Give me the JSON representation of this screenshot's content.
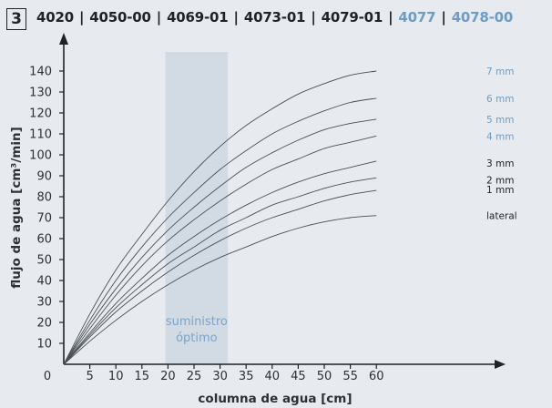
{
  "figure_number": "3",
  "title_parts": [
    {
      "text": "4020",
      "color": "#1d2329"
    },
    {
      "text": "4050-00",
      "color": "#1d2329"
    },
    {
      "text": "4069-01",
      "color": "#1d2329"
    },
    {
      "text": "4073-01",
      "color": "#1d2329"
    },
    {
      "text": "4079-01",
      "color": "#1d2329"
    },
    {
      "text": "4077",
      "color": "#6d9cc6"
    },
    {
      "text": "4078-00",
      "color": "#6d9cc6"
    }
  ],
  "title_separator": "|",
  "colors": {
    "background": "#e7ebf0",
    "axis": "#1d2329",
    "curve": "#4a4f55",
    "band": "#d2dae4",
    "label_dark": "#1d2329",
    "label_blue": "#6d9cc6"
  },
  "chart_data": {
    "type": "line",
    "xlabel": "columna de agua [cm]",
    "ylabel": "flujo de agua [cm³/min]",
    "xlim": [
      0,
      62
    ],
    "ylim": [
      0,
      147
    ],
    "xticks": [
      "0",
      "5",
      "10",
      "15",
      "20",
      "25",
      "30",
      "35",
      "40",
      "45",
      "50",
      "55",
      "60"
    ],
    "yticks": [
      "10",
      "20",
      "30",
      "40",
      "50",
      "60",
      "70",
      "80",
      "90",
      "100",
      "110",
      "120",
      "130",
      "140"
    ],
    "x": [
      0,
      5,
      10,
      15,
      20,
      25,
      30,
      35,
      40,
      45,
      50,
      55,
      60
    ],
    "series": [
      {
        "name": "7 mm",
        "label_color": "#6d9cc6",
        "values": [
          0,
          24,
          45,
          62,
          78,
          92,
          104,
          114,
          122,
          129,
          134,
          138,
          140
        ]
      },
      {
        "name": "6 mm",
        "label_color": "#6d9cc6",
        "values": [
          0,
          21,
          40,
          56,
          70,
          82,
          93,
          102,
          110,
          116,
          121,
          125,
          127
        ]
      },
      {
        "name": "5 mm",
        "label_color": "#6d9cc6",
        "values": [
          0,
          19,
          36,
          51,
          64,
          75,
          85,
          94,
          101,
          107,
          112,
          115,
          117
        ]
      },
      {
        "name": "4 mm",
        "label_color": "#6d9cc6",
        "values": [
          0,
          17,
          33,
          47,
          59,
          69,
          78,
          86,
          93,
          98,
          103,
          106,
          109
        ]
      },
      {
        "name": "3 mm",
        "label_color": "#1d2329",
        "values": [
          0,
          15,
          29,
          41,
          52,
          61,
          69,
          76,
          82,
          87,
          91,
          94,
          97
        ]
      },
      {
        "name": "2 mm",
        "label_color": "#1d2329",
        "values": [
          0,
          14,
          27,
          38,
          48,
          56,
          64,
          70,
          76,
          80,
          84,
          87,
          89
        ]
      },
      {
        "name": "1 mm",
        "label_color": "#1d2329",
        "values": [
          0,
          13,
          25,
          35,
          44,
          52,
          59,
          65,
          70,
          74,
          78,
          81,
          83
        ]
      },
      {
        "name": "lateral",
        "label_color": "#1d2329",
        "values": [
          0,
          11,
          21,
          30,
          38,
          45,
          51,
          56,
          61,
          65,
          68,
          70,
          71
        ]
      }
    ],
    "band": {
      "x_range": [
        19.5,
        31.5
      ],
      "label_lines": [
        "suministro",
        "óptimo"
      ]
    },
    "grid": false,
    "legend": "labels at right end of each curve"
  }
}
